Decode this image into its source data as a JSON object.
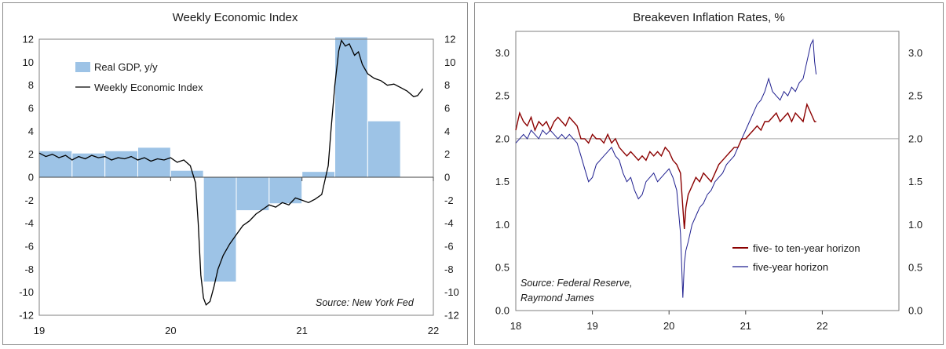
{
  "chart_data": [
    {
      "type": "bar+line",
      "title": "Weekly Economic Index",
      "source": "Source: New York Fed",
      "x_ticks": [
        "19",
        "20",
        "21",
        "22"
      ],
      "y_ticks_left": [
        "12",
        "10",
        "8",
        "6",
        "4",
        "2",
        "0",
        "-2",
        "-4",
        "-6",
        "-8",
        "-10",
        "-12"
      ],
      "y_ticks_right": [
        "12",
        "10",
        "8",
        "6",
        "4",
        "2",
        "0",
        "-2",
        "-4",
        "-6",
        "-8",
        "-10",
        "-12"
      ],
      "ylim": [
        -12,
        12
      ],
      "xlim": [
        2019.0,
        2022.0
      ],
      "legend": {
        "placement": "top-left",
        "bar_label": "Real GDP, y/y",
        "line_label": "Weekly Economic Index"
      },
      "colors": {
        "bar": "#9dc3e6",
        "bar_edge": "#ffffff",
        "line": "#000000"
      },
      "bars": {
        "name": "Real GDP, y/y",
        "quarters": [
          "2019Q1",
          "2019Q2",
          "2019Q3",
          "2019Q4",
          "2020Q1",
          "2020Q2",
          "2020Q3",
          "2020Q4",
          "2021Q1",
          "2021Q2",
          "2021Q3"
        ],
        "values": [
          2.3,
          2.1,
          2.3,
          2.6,
          0.6,
          -9.1,
          -2.9,
          -2.3,
          0.5,
          12.2,
          4.9
        ]
      },
      "line": {
        "name": "Weekly Economic Index",
        "x": [
          2019.0,
          2019.05,
          2019.1,
          2019.15,
          2019.2,
          2019.25,
          2019.3,
          2019.35,
          2019.4,
          2019.45,
          2019.5,
          2019.55,
          2019.6,
          2019.65,
          2019.7,
          2019.75,
          2019.8,
          2019.85,
          2019.9,
          2019.95,
          2020.0,
          2020.05,
          2020.1,
          2020.15,
          2020.19,
          2020.21,
          2020.23,
          2020.25,
          2020.27,
          2020.3,
          2020.33,
          2020.36,
          2020.4,
          2020.45,
          2020.5,
          2020.55,
          2020.6,
          2020.65,
          2020.7,
          2020.75,
          2020.8,
          2020.85,
          2020.9,
          2020.95,
          2021.0,
          2021.05,
          2021.1,
          2021.15,
          2021.2,
          2021.22,
          2021.25,
          2021.28,
          2021.3,
          2021.33,
          2021.36,
          2021.4,
          2021.43,
          2021.46,
          2021.5,
          2021.55,
          2021.6,
          2021.65,
          2021.7,
          2021.75,
          2021.8,
          2021.85,
          2021.88,
          2021.9,
          2021.92
        ],
        "y": [
          2.1,
          1.8,
          2.0,
          1.7,
          1.9,
          1.5,
          1.8,
          1.6,
          1.9,
          1.7,
          1.8,
          1.5,
          1.7,
          1.6,
          1.8,
          1.5,
          1.7,
          1.4,
          1.6,
          1.5,
          1.7,
          1.3,
          1.5,
          1.0,
          -0.5,
          -4.0,
          -8.5,
          -10.5,
          -11.1,
          -10.8,
          -9.5,
          -8.0,
          -6.8,
          -5.8,
          -5.0,
          -4.2,
          -3.8,
          -3.2,
          -2.8,
          -2.4,
          -2.6,
          -2.2,
          -2.4,
          -1.8,
          -2.0,
          -2.2,
          -1.9,
          -1.5,
          1.0,
          4.0,
          8.0,
          11.0,
          11.9,
          11.4,
          11.6,
          10.6,
          10.9,
          9.8,
          9.0,
          8.6,
          8.4,
          8.0,
          8.1,
          7.8,
          7.5,
          7.0,
          7.1,
          7.4,
          7.7
        ]
      }
    },
    {
      "type": "line",
      "title": "Breakeven Inflation Rates, %",
      "source_line1": "Source: Federal Reserve,",
      "source_line2": "Raymond James",
      "x_ticks": [
        "18",
        "19",
        "20",
        "21",
        "22"
      ],
      "y_ticks_left": [
        "3.0",
        "2.5",
        "2.0",
        "1.5",
        "1.0",
        "0.5",
        "0.0"
      ],
      "y_ticks_right": [
        "3.0",
        "2.5",
        "2.0",
        "1.5",
        "1.0",
        "0.5",
        "0.0"
      ],
      "ylim": [
        0.0,
        3.25
      ],
      "xlim": [
        2018.0,
        2023.0
      ],
      "reference_line_y": 2.0,
      "legend": {
        "placement": "bottom-right"
      },
      "colors": {
        "five_ten": "#8b0000",
        "five": "#1f1f8f",
        "reference": "#a6a6a6"
      },
      "series": [
        {
          "name": "five- to ten-year horizon",
          "x": [
            2018.0,
            2018.05,
            2018.1,
            2018.15,
            2018.2,
            2018.25,
            2018.3,
            2018.35,
            2018.4,
            2018.45,
            2018.5,
            2018.55,
            2018.6,
            2018.65,
            2018.7,
            2018.75,
            2018.8,
            2018.85,
            2018.9,
            2018.95,
            2019.0,
            2019.05,
            2019.1,
            2019.15,
            2019.2,
            2019.25,
            2019.3,
            2019.35,
            2019.4,
            2019.45,
            2019.5,
            2019.55,
            2019.6,
            2019.65,
            2019.7,
            2019.75,
            2019.8,
            2019.85,
            2019.9,
            2019.95,
            2020.0,
            2020.05,
            2020.1,
            2020.15,
            2020.18,
            2020.2,
            2020.22,
            2020.25,
            2020.3,
            2020.35,
            2020.4,
            2020.45,
            2020.5,
            2020.55,
            2020.6,
            2020.65,
            2020.7,
            2020.75,
            2020.8,
            2020.85,
            2020.9,
            2020.95,
            2021.0,
            2021.05,
            2021.1,
            2021.15,
            2021.2,
            2021.25,
            2021.3,
            2021.35,
            2021.4,
            2021.45,
            2021.5,
            2021.55,
            2021.6,
            2021.65,
            2021.7,
            2021.75,
            2021.8,
            2021.85,
            2021.9,
            2021.92
          ],
          "y": [
            2.1,
            2.3,
            2.2,
            2.15,
            2.25,
            2.1,
            2.2,
            2.15,
            2.2,
            2.1,
            2.2,
            2.25,
            2.2,
            2.15,
            2.25,
            2.2,
            2.15,
            2.0,
            2.0,
            1.95,
            2.05,
            2.0,
            2.0,
            1.95,
            2.05,
            1.95,
            2.0,
            1.9,
            1.85,
            1.8,
            1.85,
            1.8,
            1.75,
            1.8,
            1.75,
            1.85,
            1.8,
            1.85,
            1.8,
            1.9,
            1.85,
            1.75,
            1.7,
            1.6,
            1.2,
            0.95,
            1.2,
            1.35,
            1.45,
            1.55,
            1.5,
            1.6,
            1.55,
            1.5,
            1.6,
            1.7,
            1.75,
            1.8,
            1.85,
            1.9,
            1.9,
            2.0,
            2.0,
            2.05,
            2.1,
            2.15,
            2.1,
            2.2,
            2.2,
            2.25,
            2.3,
            2.2,
            2.25,
            2.3,
            2.2,
            2.3,
            2.25,
            2.2,
            2.4,
            2.3,
            2.2,
            2.2
          ]
        },
        {
          "name": "five-year horizon",
          "x": [
            2018.0,
            2018.05,
            2018.1,
            2018.15,
            2018.2,
            2018.25,
            2018.3,
            2018.35,
            2018.4,
            2018.45,
            2018.5,
            2018.55,
            2018.6,
            2018.65,
            2018.7,
            2018.75,
            2018.8,
            2018.85,
            2018.9,
            2018.95,
            2019.0,
            2019.05,
            2019.1,
            2019.15,
            2019.2,
            2019.25,
            2019.3,
            2019.35,
            2019.4,
            2019.45,
            2019.5,
            2019.55,
            2019.6,
            2019.65,
            2019.7,
            2019.75,
            2019.8,
            2019.85,
            2019.9,
            2019.95,
            2020.0,
            2020.05,
            2020.1,
            2020.15,
            2020.18,
            2020.2,
            2020.22,
            2020.25,
            2020.3,
            2020.35,
            2020.4,
            2020.45,
            2020.5,
            2020.55,
            2020.6,
            2020.65,
            2020.7,
            2020.75,
            2020.8,
            2020.85,
            2020.9,
            2020.95,
            2021.0,
            2021.05,
            2021.1,
            2021.15,
            2021.2,
            2021.25,
            2021.3,
            2021.35,
            2021.4,
            2021.45,
            2021.5,
            2021.55,
            2021.6,
            2021.65,
            2021.7,
            2021.75,
            2021.8,
            2021.85,
            2021.88,
            2021.9,
            2021.92
          ],
          "y": [
            1.95,
            2.0,
            2.05,
            2.0,
            2.1,
            2.05,
            2.0,
            2.1,
            2.05,
            2.1,
            2.05,
            2.0,
            2.05,
            2.0,
            2.05,
            2.0,
            1.95,
            1.8,
            1.65,
            1.5,
            1.55,
            1.7,
            1.75,
            1.8,
            1.85,
            1.9,
            1.8,
            1.75,
            1.6,
            1.5,
            1.55,
            1.4,
            1.3,
            1.35,
            1.5,
            1.55,
            1.6,
            1.5,
            1.55,
            1.6,
            1.65,
            1.55,
            1.4,
            0.9,
            0.15,
            0.55,
            0.7,
            0.8,
            1.0,
            1.1,
            1.2,
            1.25,
            1.35,
            1.4,
            1.5,
            1.55,
            1.6,
            1.7,
            1.75,
            1.8,
            1.9,
            2.0,
            2.1,
            2.2,
            2.3,
            2.4,
            2.45,
            2.55,
            2.7,
            2.55,
            2.5,
            2.45,
            2.55,
            2.5,
            2.6,
            2.55,
            2.65,
            2.7,
            2.9,
            3.1,
            3.15,
            2.9,
            2.75
          ]
        }
      ]
    }
  ]
}
